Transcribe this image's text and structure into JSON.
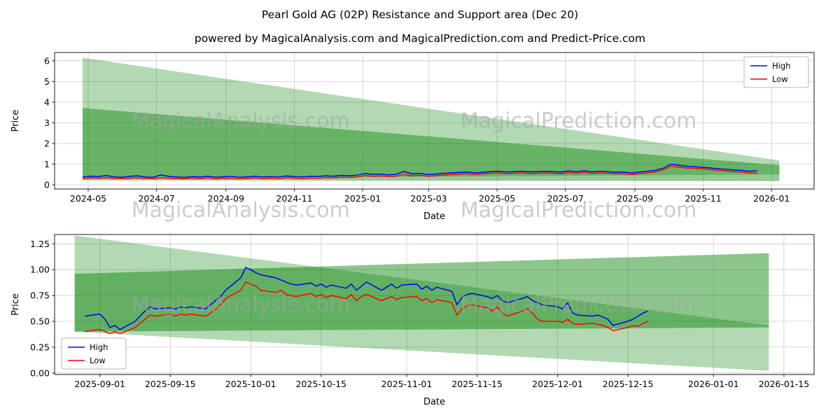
{
  "style": {
    "high_color": "#0000ff",
    "low_color": "#ff0000",
    "band_color": "#008000",
    "grid_color": "#cccccc",
    "spine_color": "#1a1a1a",
    "text_color": "#000000",
    "watermark_color": "#a3a3a3"
  },
  "watermarks": {
    "texts": [
      "MagicalAnalysis.com",
      "MagicalPrediction.com"
    ],
    "opacity": 0.55,
    "font_size": 30
  },
  "chart_data": [
    {
      "type": "line",
      "name": "top-chart",
      "title": "Pearl Gold AG (02P) Resistance and Support area (Dec 20)",
      "subtitle": "powered by MagicalAnalysis.com and MagicalPrediction.com and Predict-Price.com",
      "xlabel": "Date",
      "ylabel": "Price",
      "legend_loc": "upper-right",
      "grid": true,
      "xlim": [
        "2024-04-01",
        "2026-02-08"
      ],
      "ylim": [
        -0.2,
        6.4
      ],
      "yticks": [
        0,
        1,
        2,
        3,
        4,
        5,
        6
      ],
      "ytick_labels": [
        "0",
        "1",
        "2",
        "3",
        "4",
        "5",
        "6"
      ],
      "xticks": [
        "2024-05-01",
        "2024-07-01",
        "2024-09-01",
        "2024-11-01",
        "2025-01-01",
        "2025-03-01",
        "2025-05-01",
        "2025-07-01",
        "2025-09-01",
        "2025-11-01",
        "2026-01-01"
      ],
      "xtick_labels": [
        "2024-05",
        "2024-07",
        "2024-09",
        "2024-11",
        "2025-01",
        "2025-03",
        "2025-05",
        "2025-07",
        "2025-09",
        "2025-11",
        "2026-01"
      ],
      "bands": [
        {
          "name": "resistance-wedge-outer",
          "opacity": 0.3,
          "points": [
            [
              "2024-04-26",
              6.15
            ],
            [
              "2026-01-08",
              1.18
            ],
            [
              "2026-01-08",
              0.5
            ],
            [
              "2024-04-26",
              0.3
            ]
          ]
        },
        {
          "name": "resistance-wedge-inner",
          "opacity": 0.42,
          "points": [
            [
              "2024-04-26",
              3.72
            ],
            [
              "2026-01-08",
              0.95
            ],
            [
              "2026-01-08",
              0.18
            ],
            [
              "2024-04-26",
              0.22
            ]
          ]
        }
      ],
      "x": [
        "2024-04-26",
        "2024-05-03",
        "2024-05-10",
        "2024-05-17",
        "2024-05-24",
        "2024-05-31",
        "2024-06-07",
        "2024-06-14",
        "2024-06-21",
        "2024-06-28",
        "2024-07-05",
        "2024-07-12",
        "2024-07-19",
        "2024-07-26",
        "2024-08-02",
        "2024-08-09",
        "2024-08-16",
        "2024-08-23",
        "2024-08-30",
        "2024-09-06",
        "2024-09-13",
        "2024-09-20",
        "2024-09-27",
        "2024-10-04",
        "2024-10-11",
        "2024-10-18",
        "2024-10-25",
        "2024-11-01",
        "2024-11-08",
        "2024-11-15",
        "2024-11-22",
        "2024-11-29",
        "2024-12-06",
        "2024-12-13",
        "2024-12-20",
        "2024-12-27",
        "2025-01-03",
        "2025-01-10",
        "2025-01-17",
        "2025-01-24",
        "2025-01-31",
        "2025-02-07",
        "2025-02-14",
        "2025-02-21",
        "2025-02-28",
        "2025-03-07",
        "2025-03-14",
        "2025-03-21",
        "2025-03-28",
        "2025-04-04",
        "2025-04-11",
        "2025-04-18",
        "2025-04-25",
        "2025-05-02",
        "2025-05-09",
        "2025-05-16",
        "2025-05-23",
        "2025-05-30",
        "2025-06-06",
        "2025-06-13",
        "2025-06-20",
        "2025-06-27",
        "2025-07-04",
        "2025-07-11",
        "2025-07-18",
        "2025-07-25",
        "2025-08-01",
        "2025-08-08",
        "2025-08-15",
        "2025-08-22",
        "2025-08-29",
        "2025-09-05",
        "2025-09-12",
        "2025-09-19",
        "2025-09-26",
        "2025-10-03",
        "2025-10-10",
        "2025-10-17",
        "2025-10-24",
        "2025-10-31",
        "2025-11-07",
        "2025-11-14",
        "2025-11-21",
        "2025-11-28",
        "2025-12-05",
        "2025-12-12",
        "2025-12-19"
      ],
      "series": [
        {
          "name": "High",
          "color": "#0000ff",
          "values": [
            0.38,
            0.42,
            0.4,
            0.45,
            0.39,
            0.37,
            0.41,
            0.44,
            0.38,
            0.37,
            0.48,
            0.41,
            0.38,
            0.36,
            0.4,
            0.38,
            0.42,
            0.37,
            0.39,
            0.41,
            0.37,
            0.39,
            0.42,
            0.38,
            0.4,
            0.38,
            0.43,
            0.4,
            0.38,
            0.42,
            0.4,
            0.44,
            0.42,
            0.46,
            0.44,
            0.47,
            0.55,
            0.5,
            0.52,
            0.48,
            0.51,
            0.65,
            0.53,
            0.55,
            0.5,
            0.52,
            0.55,
            0.58,
            0.6,
            0.62,
            0.58,
            0.61,
            0.64,
            0.66,
            0.62,
            0.64,
            0.66,
            0.63,
            0.64,
            0.66,
            0.64,
            0.62,
            0.67,
            0.64,
            0.68,
            0.63,
            0.66,
            0.64,
            0.61,
            0.62,
            0.58,
            0.62,
            0.66,
            0.7,
            0.8,
            1.0,
            0.95,
            0.9,
            0.88,
            0.85,
            0.82,
            0.78,
            0.75,
            0.72,
            0.7,
            0.66,
            0.68
          ]
        },
        {
          "name": "Low",
          "color": "#ff0000",
          "values": [
            0.31,
            0.33,
            0.32,
            0.34,
            0.31,
            0.3,
            0.32,
            0.34,
            0.31,
            0.3,
            0.34,
            0.32,
            0.3,
            0.29,
            0.32,
            0.3,
            0.33,
            0.29,
            0.31,
            0.32,
            0.29,
            0.31,
            0.33,
            0.3,
            0.32,
            0.3,
            0.34,
            0.32,
            0.3,
            0.33,
            0.32,
            0.35,
            0.34,
            0.37,
            0.36,
            0.38,
            0.45,
            0.41,
            0.43,
            0.4,
            0.42,
            0.5,
            0.44,
            0.46,
            0.42,
            0.44,
            0.47,
            0.5,
            0.52,
            0.54,
            0.5,
            0.53,
            0.56,
            0.58,
            0.54,
            0.56,
            0.58,
            0.55,
            0.56,
            0.58,
            0.56,
            0.54,
            0.59,
            0.56,
            0.6,
            0.55,
            0.58,
            0.56,
            0.53,
            0.54,
            0.5,
            0.54,
            0.58,
            0.62,
            0.72,
            0.9,
            0.86,
            0.82,
            0.8,
            0.78,
            0.74,
            0.7,
            0.67,
            0.64,
            0.62,
            0.58,
            0.56
          ]
        }
      ]
    },
    {
      "type": "line",
      "name": "bottom-chart",
      "title": "",
      "xlabel": "Date",
      "ylabel": "Price",
      "legend_loc": "lower-left",
      "grid": true,
      "xlim": [
        "2025-08-23",
        "2026-01-21"
      ],
      "ylim": [
        -0.015,
        1.34
      ],
      "yticks": [
        0.0,
        0.25,
        0.5,
        0.75,
        1.0,
        1.25
      ],
      "ytick_labels": [
        "0.00",
        "0.25",
        "0.50",
        "0.75",
        "1.00",
        "1.25"
      ],
      "xticks": [
        "2025-09-01",
        "2025-09-15",
        "2025-10-01",
        "2025-10-15",
        "2025-11-01",
        "2025-11-15",
        "2025-12-01",
        "2025-12-15",
        "2026-01-01",
        "2026-01-15"
      ],
      "xtick_labels": [
        "2025-09-01",
        "2025-09-15",
        "2025-10-01",
        "2025-10-15",
        "2025-11-01",
        "2025-11-15",
        "2025-12-01",
        "2025-12-15",
        "2026-01-01",
        "2026-01-15"
      ],
      "bands": [
        {
          "name": "descending-wedge",
          "opacity": 0.3,
          "points": [
            [
              "2025-08-27",
              1.33
            ],
            [
              "2026-01-12",
              0.46
            ],
            [
              "2026-01-12",
              0.02
            ],
            [
              "2025-08-27",
              0.4
            ]
          ]
        },
        {
          "name": "support-band",
          "opacity": 0.45,
          "points": [
            [
              "2025-08-27",
              0.4
            ],
            [
              "2025-08-27",
              0.96
            ],
            [
              "2026-01-12",
              1.16
            ],
            [
              "2026-01-12",
              0.44
            ]
          ]
        }
      ],
      "x": [
        "2025-08-29",
        "2025-09-01",
        "2025-09-02",
        "2025-09-03",
        "2025-09-04",
        "2025-09-05",
        "2025-09-08",
        "2025-09-09",
        "2025-09-10",
        "2025-09-11",
        "2025-09-12",
        "2025-09-15",
        "2025-09-16",
        "2025-09-17",
        "2025-09-18",
        "2025-09-19",
        "2025-09-22",
        "2025-09-23",
        "2025-09-24",
        "2025-09-25",
        "2025-09-26",
        "2025-09-29",
        "2025-09-30",
        "2025-10-01",
        "2025-10-02",
        "2025-10-03",
        "2025-10-06",
        "2025-10-07",
        "2025-10-08",
        "2025-10-09",
        "2025-10-10",
        "2025-10-13",
        "2025-10-14",
        "2025-10-15",
        "2025-10-16",
        "2025-10-17",
        "2025-10-20",
        "2025-10-21",
        "2025-10-22",
        "2025-10-23",
        "2025-10-24",
        "2025-10-27",
        "2025-10-28",
        "2025-10-29",
        "2025-10-30",
        "2025-10-31",
        "2025-11-03",
        "2025-11-04",
        "2025-11-05",
        "2025-11-06",
        "2025-11-07",
        "2025-11-10",
        "2025-11-11",
        "2025-11-12",
        "2025-11-13",
        "2025-11-14",
        "2025-11-17",
        "2025-11-18",
        "2025-11-19",
        "2025-11-20",
        "2025-11-21",
        "2025-11-24",
        "2025-11-25",
        "2025-11-26",
        "2025-11-27",
        "2025-11-28",
        "2025-12-01",
        "2025-12-02",
        "2025-12-03",
        "2025-12-04",
        "2025-12-05",
        "2025-12-08",
        "2025-12-09",
        "2025-12-10",
        "2025-12-11",
        "2025-12-12",
        "2025-12-15",
        "2025-12-16",
        "2025-12-17",
        "2025-12-18",
        "2025-12-19"
      ],
      "series": [
        {
          "name": "High",
          "color": "#0000ff",
          "values": [
            0.55,
            0.57,
            0.52,
            0.44,
            0.46,
            0.42,
            0.5,
            0.55,
            0.6,
            0.64,
            0.62,
            0.63,
            0.62,
            0.64,
            0.63,
            0.64,
            0.62,
            0.66,
            0.7,
            0.74,
            0.8,
            0.92,
            1.02,
            1.0,
            0.97,
            0.95,
            0.92,
            0.9,
            0.88,
            0.86,
            0.85,
            0.87,
            0.84,
            0.86,
            0.83,
            0.85,
            0.82,
            0.86,
            0.8,
            0.84,
            0.88,
            0.8,
            0.83,
            0.86,
            0.82,
            0.85,
            0.86,
            0.81,
            0.84,
            0.8,
            0.83,
            0.79,
            0.66,
            0.73,
            0.76,
            0.77,
            0.74,
            0.72,
            0.75,
            0.7,
            0.68,
            0.72,
            0.74,
            0.7,
            0.68,
            0.66,
            0.64,
            0.62,
            0.68,
            0.58,
            0.56,
            0.55,
            0.56,
            0.54,
            0.52,
            0.46,
            0.5,
            0.52,
            0.55,
            0.58,
            0.6
          ]
        },
        {
          "name": "Low",
          "color": "#ff0000",
          "values": [
            0.4,
            0.42,
            0.4,
            0.38,
            0.4,
            0.38,
            0.44,
            0.48,
            0.52,
            0.56,
            0.55,
            0.57,
            0.55,
            0.57,
            0.56,
            0.57,
            0.55,
            0.58,
            0.62,
            0.66,
            0.72,
            0.8,
            0.88,
            0.86,
            0.84,
            0.8,
            0.78,
            0.8,
            0.76,
            0.75,
            0.74,
            0.77,
            0.74,
            0.76,
            0.73,
            0.75,
            0.72,
            0.76,
            0.7,
            0.74,
            0.76,
            0.7,
            0.72,
            0.74,
            0.71,
            0.73,
            0.74,
            0.7,
            0.72,
            0.68,
            0.71,
            0.68,
            0.56,
            0.62,
            0.65,
            0.66,
            0.63,
            0.6,
            0.64,
            0.58,
            0.55,
            0.6,
            0.62,
            0.58,
            0.52,
            0.5,
            0.5,
            0.49,
            0.52,
            0.48,
            0.47,
            0.48,
            0.47,
            0.46,
            0.44,
            0.41,
            0.44,
            0.46,
            0.45,
            0.48,
            0.5
          ]
        }
      ]
    }
  ]
}
